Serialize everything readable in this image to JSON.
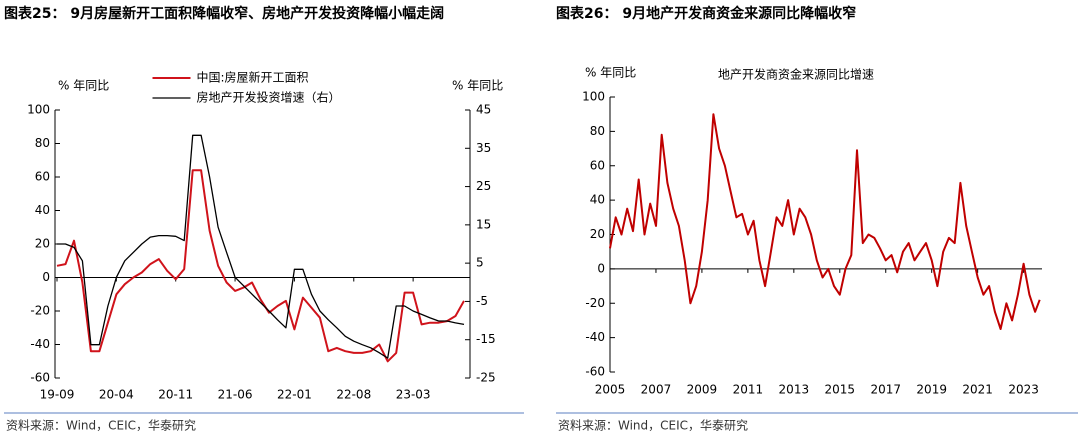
{
  "chart_data": [
    {
      "type": "line",
      "caption": "图表25：  9月房屋新开工面积降幅收窄、房地产开发投资降幅小幅走阔",
      "source": "资料来源：Wind，CEIC，华泰研究",
      "ylabel": "% 年同比",
      "y2label": "% 年同比",
      "legend": "upper center",
      "categories": [
        "19-09",
        null,
        null,
        null,
        null,
        null,
        null,
        "20-04",
        null,
        null,
        null,
        null,
        null,
        null,
        "20-11",
        null,
        null,
        null,
        null,
        null,
        null,
        "21-06",
        null,
        null,
        null,
        null,
        null,
        null,
        "22-01",
        null,
        null,
        null,
        null,
        null,
        null,
        "22-08",
        null,
        null,
        null,
        null,
        null,
        null,
        "23-03",
        null,
        null,
        null,
        null,
        null,
        null
      ],
      "series": [
        {
          "name": "中国:房屋新开工面积",
          "color": "#d0131b",
          "values": [
            7,
            8,
            22,
            -3,
            -44,
            -44,
            -27,
            -10,
            -4,
            0,
            3,
            8,
            11,
            4,
            -1,
            5,
            64,
            64,
            28,
            7,
            -3,
            -8,
            -6,
            -3,
            -13,
            -21,
            -17,
            -14,
            -31,
            -12,
            -18,
            -24,
            -44,
            -42,
            -44,
            -45,
            -45,
            -44,
            -40,
            -50,
            -45,
            -9,
            -9,
            -28,
            -27,
            -27,
            -26,
            -23,
            -14
          ]
        },
        {
          "name": "房地产开发投资增速（右）",
          "color": "#000000",
          "axis": "y2",
          "values": [
            10,
            10,
            9.1,
            5.6,
            -16.3,
            -16.3,
            -6.2,
            1.3,
            5.6,
            7.8,
            10,
            11.8,
            12.2,
            12.2,
            12,
            10.9,
            38.4,
            38.4,
            27.5,
            14.4,
            7.8,
            1.3,
            -0.9,
            -3.1,
            -5.3,
            -7.5,
            -9.8,
            -11.9,
            3.4,
            3.4,
            -3.1,
            -7.5,
            -9.8,
            -11.9,
            -14.1,
            -15.4,
            -16.3,
            -17.1,
            -18.4,
            -19.8,
            -6.2,
            -6.2,
            -7.5,
            -8.4,
            -9.3,
            -10.1,
            -10.1,
            -10.6,
            -11
          ]
        }
      ],
      "ylim": [
        -60,
        100
      ],
      "yticks": [
        -60,
        -40,
        -20,
        0,
        20,
        40,
        60,
        80,
        100
      ],
      "y2lim": [
        -25,
        45
      ],
      "y2ticks": [
        -25,
        -15,
        -5,
        5,
        15,
        25,
        35,
        45
      ]
    },
    {
      "type": "line",
      "caption": "图表26：  9月地产开发商资金来源同比降幅收窄",
      "source": "资料来源：Wind，CEIC，华泰研究",
      "title": "地产开发商资金来源同比增速",
      "ylabel": "% 年同比",
      "color": "#c00000",
      "x": [
        2005,
        2005.25,
        2005.5,
        2005.75,
        2006,
        2006.25,
        2006.5,
        2006.75,
        2007,
        2007.25,
        2007.5,
        2007.75,
        2008,
        2008.25,
        2008.5,
        2008.75,
        2009,
        2009.25,
        2009.5,
        2009.75,
        2010,
        2010.25,
        2010.5,
        2010.75,
        2011,
        2011.25,
        2011.5,
        2011.75,
        2012,
        2012.25,
        2012.5,
        2012.75,
        2013,
        2013.25,
        2013.5,
        2013.75,
        2014,
        2014.25,
        2014.5,
        2014.75,
        2015,
        2015.25,
        2015.5,
        2015.75,
        2016,
        2016.25,
        2016.5,
        2016.75,
        2017,
        2017.25,
        2017.5,
        2017.75,
        2018,
        2018.25,
        2018.5,
        2018.75,
        2019,
        2019.25,
        2019.5,
        2019.75,
        2020,
        2020.25,
        2020.5,
        2020.75,
        2021,
        2021.25,
        2021.5,
        2021.75,
        2022,
        2022.25,
        2022.5,
        2022.75,
        2023,
        2023.25,
        2023.5,
        2023.7
      ],
      "values": [
        12,
        30,
        20,
        35,
        22,
        52,
        20,
        38,
        25,
        78,
        50,
        35,
        25,
        5,
        -20,
        -10,
        10,
        40,
        90,
        70,
        60,
        45,
        30,
        32,
        20,
        28,
        5,
        -10,
        10,
        30,
        25,
        40,
        20,
        35,
        30,
        20,
        5,
        -5,
        0,
        -10,
        -15,
        0,
        8,
        69,
        15,
        20,
        18,
        12,
        5,
        8,
        -2,
        10,
        15,
        5,
        10,
        15,
        5,
        -10,
        10,
        18,
        15,
        50,
        25,
        10,
        -5,
        -15,
        -10,
        -25,
        -35,
        -20,
        -30,
        -15,
        3,
        -15,
        -25,
        -18
      ],
      "xlim": [
        2005,
        2023.8
      ],
      "xticks": [
        2005,
        2007,
        2009,
        2011,
        2013,
        2015,
        2017,
        2019,
        2021,
        2023
      ],
      "ylim": [
        -60,
        100
      ],
      "yticks": [
        -60,
        -40,
        -20,
        0,
        20,
        40,
        60,
        80,
        100
      ]
    }
  ]
}
